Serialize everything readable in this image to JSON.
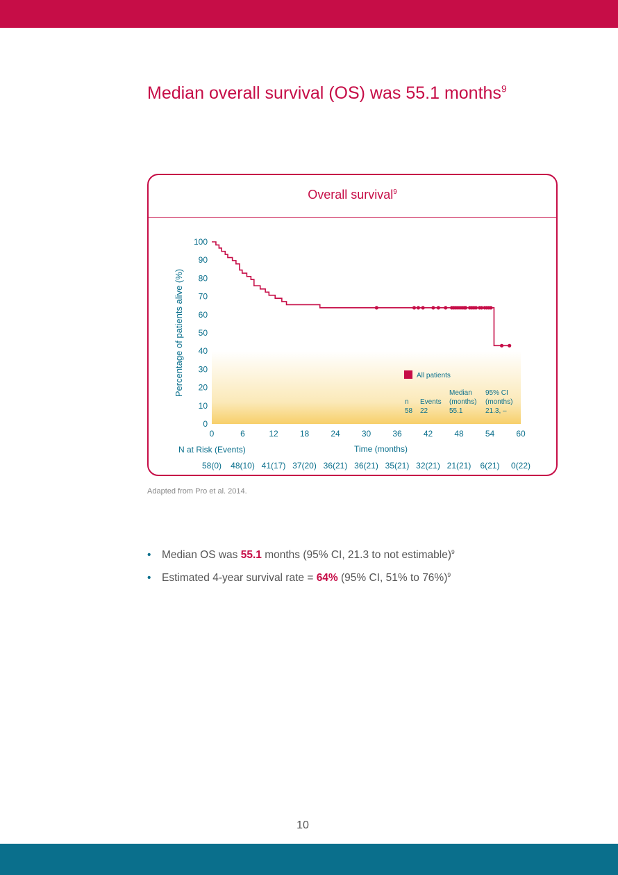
{
  "heading": {
    "text": "Median overall survival (OS) was 55.1 months",
    "ref": "9"
  },
  "card": {
    "title": "Overall survival",
    "title_ref": "9"
  },
  "chart_data": {
    "type": "line",
    "title": "Overall survival",
    "xlabel": "Time (months)",
    "ylabel": "Percentage of patients alive (%)",
    "xlim": [
      0,
      60
    ],
    "ylim": [
      0,
      100
    ],
    "xticks": [
      "0",
      "6",
      "12",
      "18",
      "24",
      "30",
      "36",
      "42",
      "48",
      "54",
      "60"
    ],
    "yticks": [
      "0",
      "10",
      "20",
      "30",
      "40",
      "50",
      "60",
      "70",
      "80",
      "90",
      "100"
    ],
    "series": [
      {
        "name": "All patients",
        "color": "#c60d47",
        "steps": [
          [
            0,
            100
          ],
          [
            0.8,
            98.3
          ],
          [
            1.4,
            96.6
          ],
          [
            1.9,
            94.8
          ],
          [
            2.6,
            93.1
          ],
          [
            3.1,
            91.4
          ],
          [
            4.0,
            89.7
          ],
          [
            4.7,
            87.9
          ],
          [
            5.4,
            84.5
          ],
          [
            5.9,
            82.8
          ],
          [
            6.8,
            81.0
          ],
          [
            7.6,
            79.3
          ],
          [
            8.2,
            75.9
          ],
          [
            9.4,
            74.1
          ],
          [
            10.4,
            72.4
          ],
          [
            11.1,
            70.7
          ],
          [
            12.3,
            69.0
          ],
          [
            13.6,
            67.2
          ],
          [
            14.5,
            65.5
          ],
          [
            21.0,
            63.8
          ],
          [
            54.8,
            43.0
          ]
        ],
        "end": 58.0,
        "censored": [
          [
            32.0,
            63.8
          ],
          [
            39.3,
            63.8
          ],
          [
            40.1,
            63.8
          ],
          [
            41.0,
            63.8
          ],
          [
            43.0,
            63.8
          ],
          [
            44.0,
            63.8
          ],
          [
            45.4,
            63.8
          ],
          [
            46.6,
            63.8
          ],
          [
            47.0,
            63.8
          ],
          [
            47.4,
            63.8
          ],
          [
            47.8,
            63.8
          ],
          [
            48.2,
            63.8
          ],
          [
            48.6,
            63.8
          ],
          [
            49.0,
            63.8
          ],
          [
            49.3,
            63.8
          ],
          [
            50.1,
            63.8
          ],
          [
            50.5,
            63.8
          ],
          [
            50.9,
            63.8
          ],
          [
            51.3,
            63.8
          ],
          [
            52.0,
            63.8
          ],
          [
            52.4,
            63.8
          ],
          [
            53.0,
            63.8
          ],
          [
            53.4,
            63.8
          ],
          [
            53.8,
            63.8
          ],
          [
            54.2,
            63.8
          ],
          [
            56.3,
            43.0
          ],
          [
            57.8,
            43.0
          ]
        ]
      }
    ],
    "legend": {
      "label": "All patients",
      "col_headers": [
        "n",
        "Events",
        "Median\n(months)",
        "95% CI\n(months)"
      ],
      "values": [
        "58",
        "22",
        "55.1",
        "21.3, –"
      ]
    },
    "risk_table": {
      "label": "N at Risk (Events)",
      "values": [
        "58(0)",
        "48(10)",
        "41(17)",
        "37(20)",
        "36(21)",
        "36(21)",
        "35(21)",
        "32(21)",
        "21(21)",
        "6(21)",
        "0(22)"
      ]
    }
  },
  "source_note": "Adapted from Pro et al. 2014.",
  "bullets": [
    {
      "pre": "Median OS was ",
      "highlight": "55.1",
      "post": " months (95% CI, 21.3 to not estimable)",
      "ref": "9"
    },
    {
      "pre": "Estimated 4-year survival rate = ",
      "highlight": "64%",
      "post": " (95% CI, 51% to 76%)",
      "ref": "9"
    }
  ],
  "page_number": "10"
}
